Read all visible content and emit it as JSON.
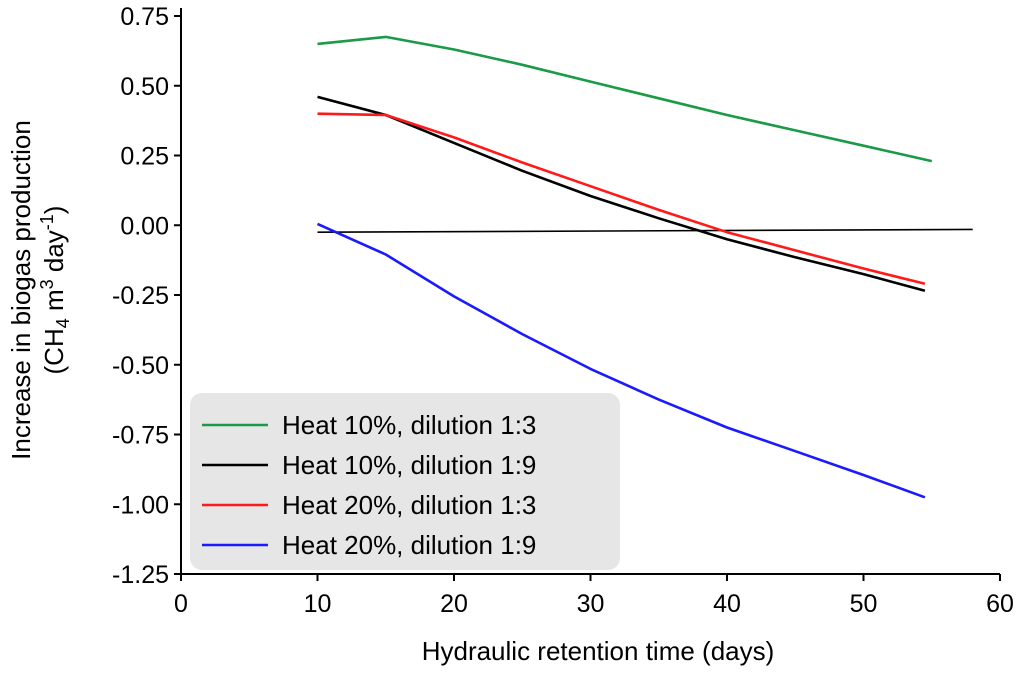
{
  "chart_data": {
    "type": "line",
    "xlabel": "Hydraulic retention time (days)",
    "ylabel_line1": "Increase in biogas production",
    "ylabel_line2": {
      "open": "(CH",
      "sub": "4",
      "mid": " m",
      "sup1": "3",
      "mid2": " day",
      "sup2": "-1",
      "close": ")"
    },
    "xlim": [
      0,
      60
    ],
    "ylim": [
      -1.25,
      0.75
    ],
    "xticks": [
      0,
      10,
      20,
      30,
      40,
      50,
      60
    ],
    "xtick_labels": [
      "0",
      "10",
      "20",
      "30",
      "40",
      "50",
      "60"
    ],
    "yticks": [
      0.75,
      0.5,
      0.25,
      0.0,
      -0.25,
      -0.5,
      -0.75,
      -1.0,
      -1.25
    ],
    "ytick_labels": [
      "0.75",
      "0.50",
      "0.25",
      "0.00",
      "-0.25",
      "-0.50",
      "-0.75",
      "-1.00",
      "-1.25"
    ],
    "reference_line": {
      "x": [
        10,
        58
      ],
      "y": [
        -0.025,
        -0.015
      ],
      "color": "#000000"
    },
    "series": [
      {
        "name": "Heat 10%, dilution 1:3",
        "color": "#1b9a47",
        "x": [
          10,
          15,
          20,
          25,
          30,
          35,
          40,
          45,
          50,
          55
        ],
        "y": [
          0.65,
          0.675,
          0.63,
          0.575,
          0.515,
          0.455,
          0.395,
          0.34,
          0.285,
          0.23
        ]
      },
      {
        "name": "Heat 10%, dilution 1:9",
        "color": "#000000",
        "x": [
          10,
          15,
          20,
          25,
          30,
          35,
          40,
          45,
          50,
          54.5
        ],
        "y": [
          0.46,
          0.395,
          0.295,
          0.195,
          0.105,
          0.025,
          -0.05,
          -0.115,
          -0.175,
          -0.235
        ]
      },
      {
        "name": "Heat 20%, dilution 1:3",
        "color": "#ff1a1a",
        "x": [
          10,
          15,
          20,
          25,
          30,
          35,
          40,
          45,
          50,
          54.5
        ],
        "y": [
          0.4,
          0.395,
          0.315,
          0.225,
          0.14,
          0.055,
          -0.025,
          -0.09,
          -0.155,
          -0.21
        ]
      },
      {
        "name": "Heat 20%, dilution 1:9",
        "color": "#1a1aff",
        "x": [
          10,
          15,
          20,
          25,
          30,
          35,
          40,
          45,
          50,
          54.5
        ],
        "y": [
          0.005,
          -0.105,
          -0.255,
          -0.39,
          -0.515,
          -0.625,
          -0.725,
          -0.81,
          -0.895,
          -0.975
        ]
      }
    ],
    "legend_position": "bottom-left"
  }
}
